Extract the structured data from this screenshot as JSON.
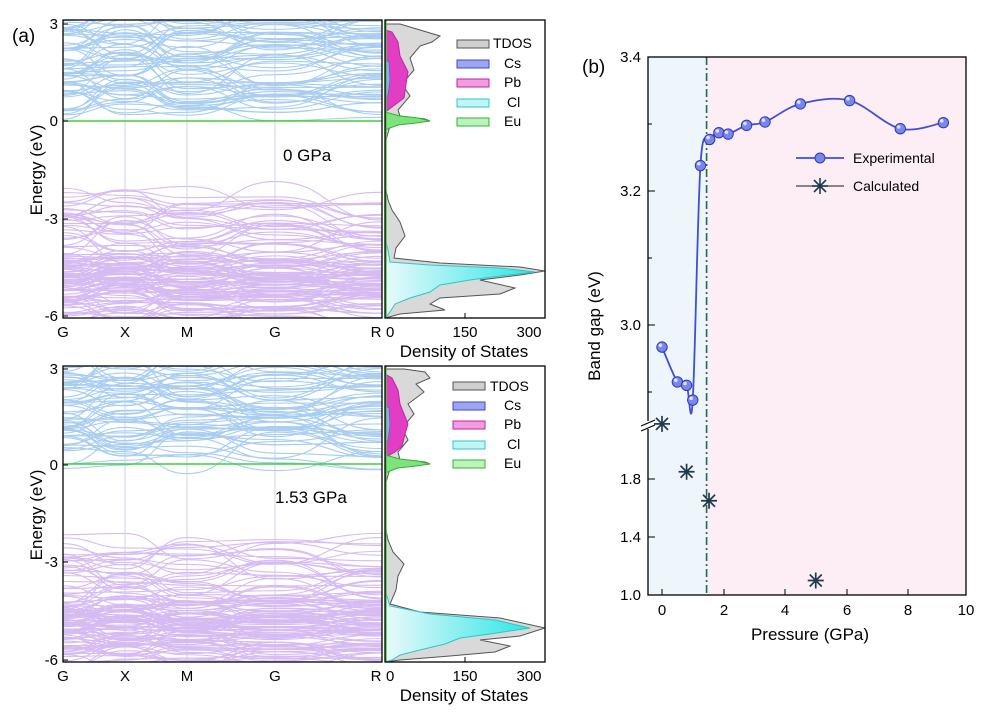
{
  "chart_data": [
    {
      "id": "band_0",
      "type": "line",
      "panel_label": "(a)",
      "annotation": "0 GPa",
      "ylabel": "Energy (eV)",
      "ylim": [
        -6,
        3
      ],
      "yticks": [
        "3",
        "0",
        "-3",
        "-6"
      ],
      "kpoints": [
        "G",
        "X",
        "M",
        "G",
        "R"
      ],
      "series": [
        {
          "name": "Conduction bands",
          "color": "#a8cdf0"
        },
        {
          "name": "Eu 4f flat band",
          "color": "#3dcf3d",
          "y": 0
        },
        {
          "name": "Valence bands",
          "color": "#d6bbf2"
        }
      ]
    },
    {
      "id": "dos_0",
      "type": "area",
      "xlabel": "Density of States",
      "xlim": [
        0,
        300
      ],
      "xticks": [
        "0",
        "150",
        "300"
      ],
      "legend": [
        "TDOS",
        "Cs",
        "Pb",
        "Cl",
        "Eu"
      ],
      "legend_position": "top-right",
      "series": [
        {
          "name": "TDOS",
          "color": "#a7a7a7"
        },
        {
          "name": "Cs",
          "color": "#6d75e0"
        },
        {
          "name": "Pb",
          "color": "#e23ec3"
        },
        {
          "name": "Cl",
          "color": "#46e3e3"
        },
        {
          "name": "Eu",
          "color": "#5fd95f"
        }
      ]
    },
    {
      "id": "band_1",
      "type": "line",
      "annotation": "1.53 GPa",
      "ylabel": "Energy (eV)",
      "ylim": [
        -6,
        3
      ],
      "yticks": [
        "3",
        "0",
        "-3",
        "-6"
      ],
      "kpoints": [
        "G",
        "X",
        "M",
        "G",
        "R"
      ],
      "series": [
        {
          "name": "Conduction bands",
          "color": "#a8cdf0"
        },
        {
          "name": "Eu 4f flat band",
          "color": "#3dcf3d",
          "y": 0
        },
        {
          "name": "Valence bands",
          "color": "#d6bbf2"
        }
      ]
    },
    {
      "id": "dos_1",
      "type": "area",
      "xlabel": "Density of States",
      "xlim": [
        0,
        300
      ],
      "xticks": [
        "0",
        "150",
        "300"
      ],
      "legend": [
        "TDOS",
        "Cs",
        "Pb",
        "Cl",
        "Eu"
      ],
      "legend_position": "top-right",
      "series": [
        {
          "name": "TDOS",
          "color": "#a7a7a7"
        },
        {
          "name": "Cs",
          "color": "#6d75e0"
        },
        {
          "name": "Pb",
          "color": "#e23ec3"
        },
        {
          "name": "Cl",
          "color": "#46e3e3"
        },
        {
          "name": "Eu",
          "color": "#5fd95f"
        }
      ]
    },
    {
      "id": "bandgap",
      "type": "scatter",
      "panel_label": "(b)",
      "xlabel": "Pressure (GPa)",
      "ylabel": "Band gap (eV)",
      "xlim": [
        -0.3,
        10
      ],
      "xticks": [
        "0",
        "2",
        "4",
        "6",
        "8",
        "10"
      ],
      "axis_break": true,
      "yticks_upper": [
        "3.4",
        "3.2",
        "3.0"
      ],
      "yticks_lower": [
        "1.8",
        "1.4",
        "1.0"
      ],
      "phase_boundary_x": 1.45,
      "region_colors": [
        "#eef6fc",
        "#fdeef5"
      ],
      "legend_position": "top-right",
      "series": [
        {
          "name": "Experimental",
          "color": "#3f4fd6",
          "x": [
            0.0,
            0.5,
            0.8,
            1.0,
            1.25,
            1.55,
            1.85,
            2.15,
            2.75,
            3.35,
            4.5,
            6.1,
            7.75,
            9.15
          ],
          "y": [
            2.967,
            2.915,
            2.91,
            2.888,
            3.238,
            3.277,
            3.287,
            3.285,
            3.298,
            3.303,
            3.33,
            3.335,
            3.293,
            3.302
          ]
        },
        {
          "name": "Calculated",
          "color": "#1f3a4d",
          "x": [
            0.0,
            0.8,
            1.53,
            5.0
          ],
          "y": [
            2.18,
            1.85,
            1.65,
            1.1
          ]
        }
      ]
    }
  ]
}
